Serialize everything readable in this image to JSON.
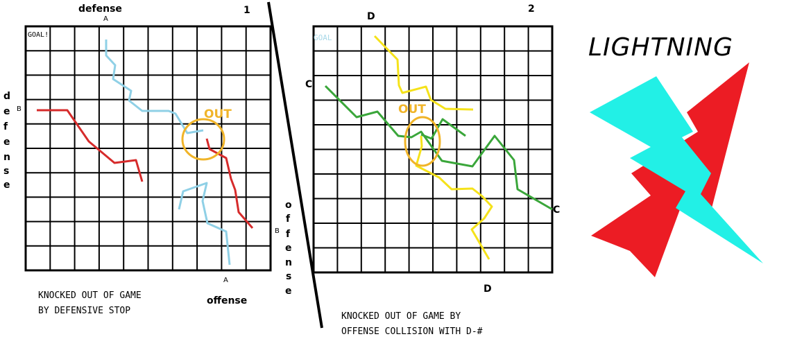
{
  "colors": {
    "grid": "#000000",
    "defense_path_blue": "#8fd0e6",
    "offense_path_red": "#d62b2b",
    "out_circle": "#f0b429",
    "yellow_path": "#f5e21a",
    "green_path": "#3aa63a",
    "lightning_red": "#ec1c24",
    "lightning_cyan": "#22f0e6"
  },
  "diagram1": {
    "number": "1",
    "top_label": "defense",
    "top_marker": "A",
    "left_label_letters": [
      "d",
      "e",
      "f",
      "e",
      "n",
      "s",
      "e"
    ],
    "left_marker": "B",
    "goal_label": "GOAL!",
    "out_label": "OUT",
    "right_label_letters": [
      "o",
      "f",
      "f",
      "e",
      "n",
      "s",
      "e"
    ],
    "right_marker": "B",
    "bottom_marker": "A",
    "bottom_label": "offense",
    "caption_line1": "KNOCKED OUT OF GAME",
    "caption_line2": "BY DEFENSIVE STOP"
  },
  "diagram2": {
    "number": "2",
    "top_marker": "D",
    "goal_label": "GOAL",
    "left_marker": "C",
    "out_label": "OUT",
    "right_marker": "C",
    "bottom_marker": "D",
    "caption_line1": "KNOCKED OUT OF GAME BY",
    "caption_line2": "OFFENSE COLLISION WITH D-#"
  },
  "logo": {
    "title": "LIGHTNING",
    "icon": "lightning-bolt-icon"
  }
}
